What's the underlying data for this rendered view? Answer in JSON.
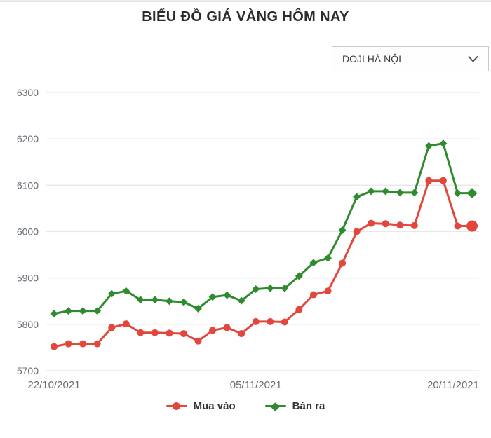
{
  "page": {
    "title": "BIỂU ĐỒ GIÁ VÀNG HÔM NAY"
  },
  "controls": {
    "exchange_dropdown": {
      "selected": "DOJI HÀ NỘI",
      "icon": "chevron-down-icon"
    }
  },
  "colors": {
    "buy_line": "#e2463c",
    "sell_line": "#2e8b2e",
    "grid": "#e8e8e8",
    "axis_text": "#666e76",
    "title_text": "#2b2b2b",
    "legend_text": "#333333",
    "dropdown_border": "#c9c9c9"
  },
  "chart_data": {
    "type": "line",
    "title": "BIỂU ĐỒ GIÁ VÀNG HÔM NAY",
    "xlabel": "",
    "ylabel": "",
    "ylim": [
      5700,
      6300
    ],
    "y_ticks": [
      6300,
      6200,
      6100,
      6000,
      5900,
      5800,
      5700
    ],
    "x_tick_labels": [
      "22/10/2021",
      "05/11/2021",
      "20/11/2021"
    ],
    "x_tick_indices": [
      0,
      14,
      29
    ],
    "grid": "horizontal",
    "legend_position": "bottom",
    "num_points": 30,
    "series": [
      {
        "name": "Mua vào",
        "marker": "circle",
        "color": "#e2463c",
        "values": [
          5752,
          5758,
          5758,
          5758,
          5793,
          5801,
          5782,
          5782,
          5781,
          5780,
          5764,
          5787,
          5793,
          5780,
          5806,
          5806,
          5805,
          5832,
          5864,
          5872,
          5932,
          6000,
          6018,
          6017,
          6014,
          6013,
          6110,
          6110,
          6012,
          6012
        ]
      },
      {
        "name": "Bán ra",
        "marker": "diamond",
        "color": "#2e8b2e",
        "values": [
          5823,
          5829,
          5829,
          5829,
          5866,
          5872,
          5853,
          5853,
          5850,
          5848,
          5834,
          5859,
          5863,
          5851,
          5876,
          5878,
          5878,
          5904,
          5933,
          5943,
          6003,
          6075,
          6087,
          6087,
          6084,
          6084,
          6185,
          6190,
          6083,
          6083
        ]
      }
    ]
  }
}
